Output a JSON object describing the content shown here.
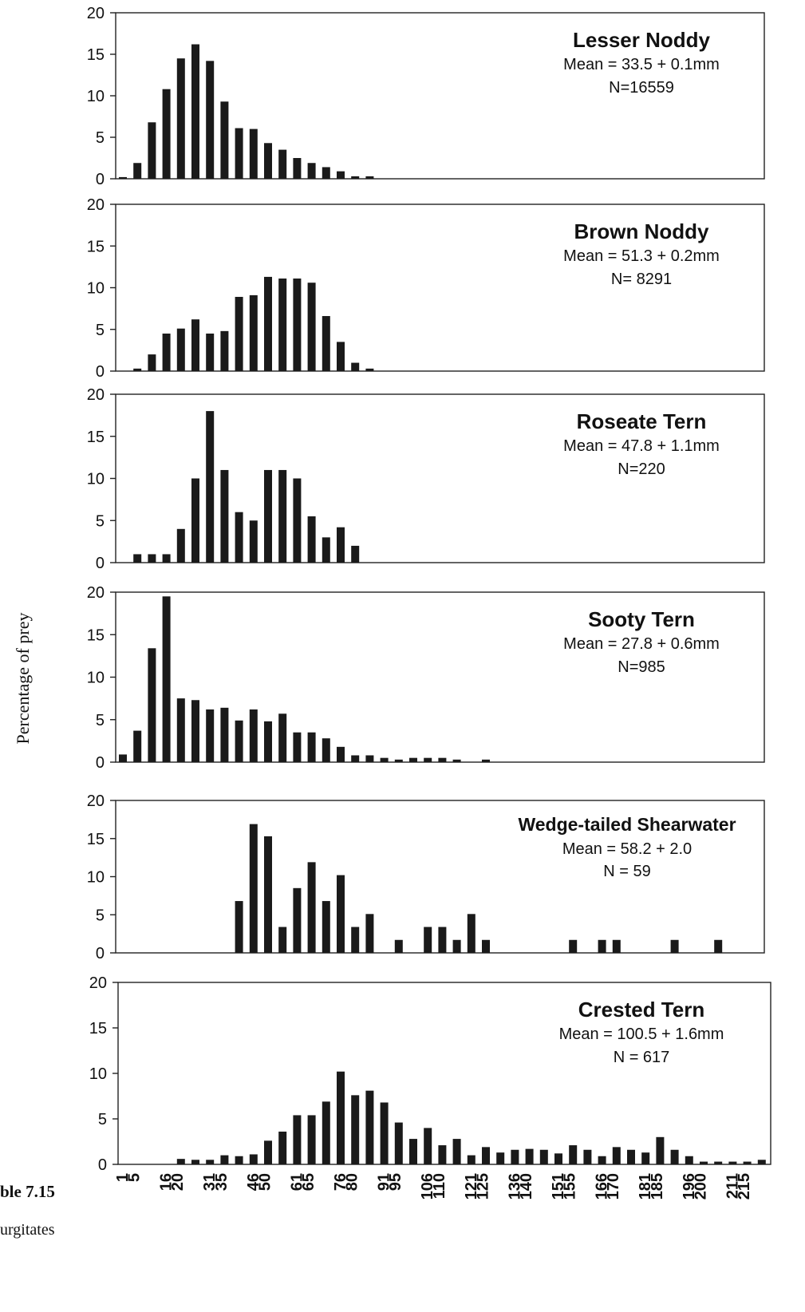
{
  "figure": {
    "ylabel": "Percentage of prey",
    "caption_left_fragment_1": "ble 7.15",
    "caption_left_fragment_2": "urgitates"
  },
  "chart_data": [
    {
      "type": "bar",
      "title": "Lesser Noddy",
      "subtitle": "Mean = 33.5 + 0.1mm",
      "n_label": "N=16559",
      "ylim": [
        0,
        20
      ],
      "yticks": [
        0,
        5,
        10,
        15,
        20
      ],
      "bins": [
        1,
        6,
        11,
        16,
        21,
        26,
        31,
        36,
        41,
        46,
        51,
        56,
        61,
        66,
        71,
        76,
        81,
        86
      ],
      "values": [
        0.2,
        1.9,
        6.8,
        10.8,
        14.5,
        16.2,
        14.2,
        9.3,
        6.1,
        6.0,
        4.3,
        3.5,
        2.5,
        1.9,
        1.4,
        0.9,
        0.3,
        0.3
      ]
    },
    {
      "type": "bar",
      "title": "Brown Noddy",
      "subtitle": "Mean = 51.3 + 0.2mm",
      "n_label": "N= 8291",
      "ylim": [
        0,
        20
      ],
      "yticks": [
        0,
        5,
        10,
        15,
        20
      ],
      "bins": [
        6,
        11,
        16,
        21,
        26,
        31,
        36,
        41,
        46,
        51,
        56,
        61,
        66,
        71,
        76,
        81,
        86
      ],
      "values": [
        0.3,
        2.0,
        4.5,
        5.1,
        6.2,
        4.5,
        4.8,
        8.9,
        9.1,
        11.3,
        11.1,
        11.1,
        10.6,
        6.6,
        3.5,
        1.0,
        0.3
      ]
    },
    {
      "type": "bar",
      "title": "Roseate Tern",
      "subtitle": "Mean = 47.8 + 1.1mm",
      "n_label": "N=220",
      "ylim": [
        0,
        20
      ],
      "yticks": [
        0,
        5,
        10,
        15,
        20
      ],
      "bins": [
        6,
        11,
        16,
        21,
        26,
        31,
        36,
        41,
        46,
        51,
        56,
        61,
        66,
        71,
        76,
        81
      ],
      "values": [
        1.0,
        1.0,
        1.0,
        4.0,
        10.0,
        18.0,
        11.0,
        6.0,
        5.0,
        11.0,
        11.0,
        10.0,
        5.5,
        3.0,
        4.2,
        2.0
      ]
    },
    {
      "type": "bar",
      "title": "Sooty Tern",
      "subtitle": "Mean = 27.8 + 0.6mm",
      "n_label": "N=985",
      "ylim": [
        0,
        20
      ],
      "yticks": [
        0,
        5,
        10,
        15,
        20
      ],
      "bins": [
        1,
        6,
        11,
        16,
        21,
        26,
        31,
        36,
        41,
        46,
        51,
        56,
        61,
        66,
        71,
        76,
        81,
        86,
        91,
        96,
        101,
        106,
        111,
        116,
        126
      ],
      "values": [
        0.9,
        3.7,
        13.4,
        19.5,
        7.5,
        7.3,
        6.2,
        6.4,
        4.9,
        6.2,
        4.8,
        5.7,
        3.5,
        3.5,
        2.8,
        1.8,
        0.8,
        0.8,
        0.5,
        0.3,
        0.5,
        0.5,
        0.5,
        0.3,
        0.3
      ]
    },
    {
      "type": "bar",
      "title": "Wedge-tailed Shearwater",
      "subtitle": "Mean = 58.2 + 2.0",
      "n_label": "N = 59",
      "ylim": [
        0,
        20
      ],
      "yticks": [
        0,
        5,
        10,
        15,
        20
      ],
      "bins": [
        41,
        46,
        51,
        56,
        61,
        66,
        71,
        76,
        81,
        86,
        96,
        106,
        111,
        116,
        121,
        126,
        156,
        166,
        171,
        191,
        206
      ],
      "values": [
        6.8,
        16.9,
        15.3,
        3.4,
        8.5,
        11.9,
        6.8,
        10.2,
        3.4,
        5.1,
        1.7,
        3.4,
        3.4,
        1.7,
        5.1,
        1.7,
        1.7,
        1.7,
        1.7,
        1.7,
        1.7
      ]
    },
    {
      "type": "bar",
      "title": "Crested Tern",
      "subtitle": "Mean = 100.5 + 1.6mm",
      "n_label": "N = 617",
      "ylim": [
        0,
        20
      ],
      "yticks": [
        0,
        5,
        10,
        15,
        20
      ],
      "bins": [
        21,
        26,
        31,
        36,
        41,
        46,
        51,
        56,
        61,
        66,
        71,
        76,
        81,
        86,
        91,
        96,
        101,
        106,
        111,
        116,
        121,
        126,
        131,
        136,
        141,
        146,
        151,
        156,
        161,
        166,
        171,
        176,
        181,
        186,
        191,
        196,
        201,
        206,
        211,
        216,
        221
      ],
      "values": [
        0.6,
        0.5,
        0.5,
        1.0,
        0.9,
        1.1,
        2.6,
        3.6,
        5.4,
        5.4,
        6.9,
        10.2,
        7.6,
        8.1,
        6.8,
        4.6,
        2.8,
        4.0,
        2.1,
        2.8,
        1.0,
        1.9,
        1.3,
        1.6,
        1.7,
        1.6,
        1.2,
        2.1,
        1.6,
        0.9,
        1.9,
        1.6,
        1.3,
        3.0,
        1.6,
        0.9,
        0.3,
        0.3,
        0.3,
        0.3,
        0.5
      ]
    }
  ],
  "x_axis": {
    "ticks": [
      {
        "label": "1",
        "value": 1
      },
      {
        "label": "5",
        "value": 5
      },
      {
        "label": "16",
        "value": 16
      },
      {
        "label": "20",
        "value": 20
      },
      {
        "label": "31",
        "value": 31
      },
      {
        "label": "35",
        "value": 35
      },
      {
        "label": "46",
        "value": 46
      },
      {
        "label": "50",
        "value": 50
      },
      {
        "label": "61",
        "value": 61
      },
      {
        "label": "65",
        "value": 65
      },
      {
        "label": "76",
        "value": 76
      },
      {
        "label": "80",
        "value": 80
      },
      {
        "label": "91",
        "value": 91
      },
      {
        "label": "95",
        "value": 95
      },
      {
        "label": "106",
        "value": 106
      },
      {
        "label": "110",
        "value": 110
      },
      {
        "label": "121",
        "value": 121
      },
      {
        "label": "125",
        "value": 125
      },
      {
        "label": "136",
        "value": 136
      },
      {
        "label": "140",
        "value": 140
      },
      {
        "label": "151",
        "value": 151
      },
      {
        "label": "155",
        "value": 155
      },
      {
        "label": "166",
        "value": 166
      },
      {
        "label": "170",
        "value": 170
      },
      {
        "label": "181",
        "value": 181
      },
      {
        "label": "185",
        "value": 185
      },
      {
        "label": "196",
        "value": 196
      },
      {
        "label": "200",
        "value": 200
      },
      {
        "label": "211",
        "value": 211
      },
      {
        "label": "215",
        "value": 215
      }
    ]
  },
  "colors": {
    "bar": "#1a1a1a",
    "axis": "#222222",
    "background": "#ffffff"
  }
}
